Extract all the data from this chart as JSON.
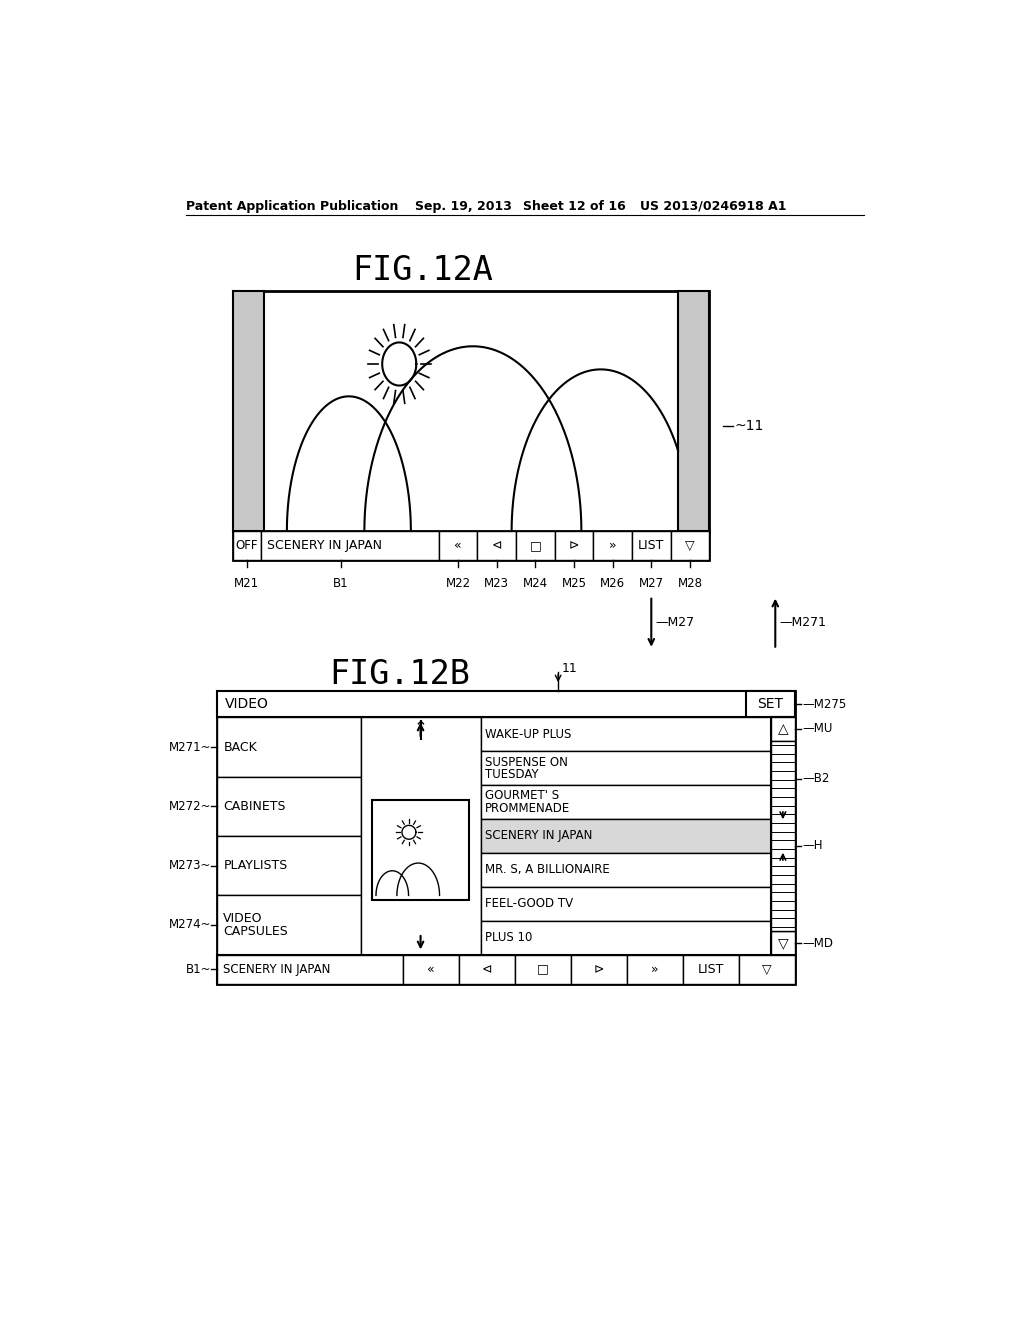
{
  "bg_color": "#ffffff",
  "header_text": "Patent Application Publication",
  "header_date": "Sep. 19, 2013",
  "header_sheet": "Sheet 12 of 16",
  "header_patent": "US 2013/0246918 A1",
  "fig12a_title": "FIG.12A",
  "fig12b_title": "FIG.12B",
  "ref11": "11",
  "toolbar_labels_12a": [
    "M21",
    "B1",
    "M22",
    "M23",
    "M24",
    "M25",
    "M26",
    "M27",
    "M28"
  ],
  "arrow_m27": "M27",
  "arrow_m271": "M271",
  "fig12b_left_items": [
    "BACK",
    "CABINETS",
    "PLAYLISTS",
    "VIDEO\nCAPSULES"
  ],
  "fig12b_left_labels": [
    "M271",
    "M272",
    "M273",
    "M274"
  ],
  "fig12b_list_items": [
    "WAKE-UP PLUS",
    "SUSPENSE ON\nTUESDAY",
    "GOURMET' S\nPROMMENADE",
    "SCENERY IN JAPAN",
    "MR. S, A BILLIONAIRE",
    "FEEL-GOOD TV",
    "PLUS 10"
  ],
  "fig12b_set": "SET",
  "fig12b_m275": "M275",
  "fig12b_mu": "MU",
  "fig12b_b2": "B2",
  "fig12b_h": "H",
  "fig12b_md": "MD",
  "b1_label": "B1",
  "scroll_btn_up": "△",
  "scroll_btn_down": "▽",
  "btn_icons": [
    "«",
    "⊲",
    "□",
    "⊳",
    "»",
    "LIST",
    "▽"
  ]
}
